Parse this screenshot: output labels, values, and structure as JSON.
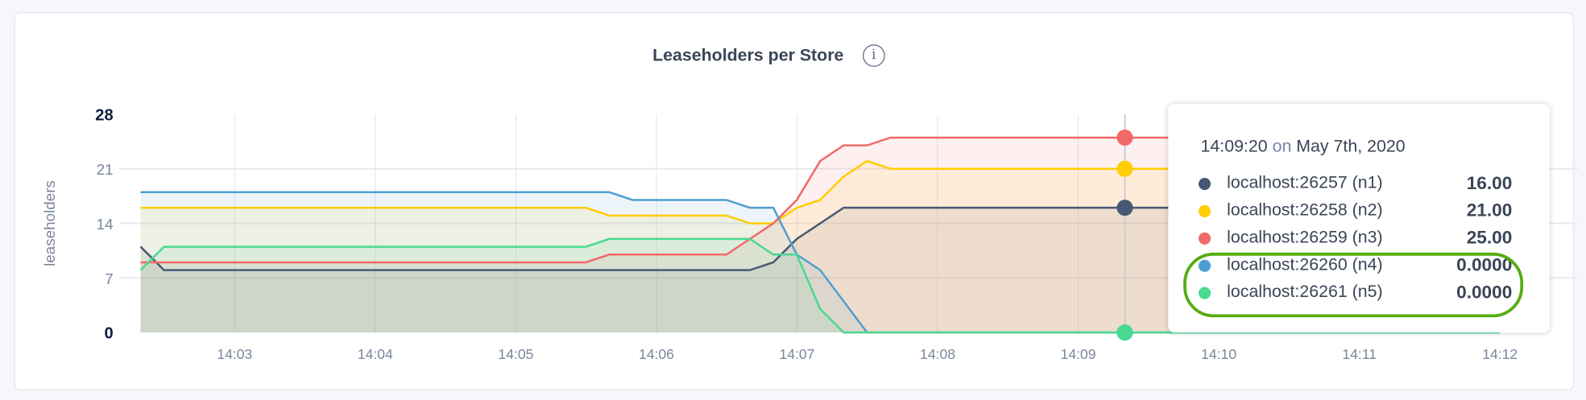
{
  "title": "Leaseholders per Store",
  "info_icon": "info-icon",
  "chart_data": {
    "type": "area",
    "title": "Leaseholders per Store",
    "ylabel": "leaseholders",
    "xlabel": "",
    "ylim": [
      0,
      28
    ],
    "yticks": [
      "0",
      "7",
      "14",
      "21",
      "28"
    ],
    "xticks": [
      "14:03",
      "14:04",
      "14:05",
      "14:06",
      "14:07",
      "14:08",
      "14:09",
      "14:10",
      "14:11",
      "14:12"
    ],
    "x_start": "14:02:20",
    "x_interval_seconds": 10,
    "grid": true,
    "series": [
      {
        "name": "localhost:26257 (n1)",
        "color": "#475872",
        "values": [
          11,
          8,
          8,
          8,
          8,
          8,
          8,
          8,
          8,
          8,
          8,
          8,
          8,
          8,
          8,
          8,
          8,
          8,
          8,
          8,
          8,
          8,
          8,
          8,
          8,
          8,
          8,
          9,
          12,
          14,
          16,
          16,
          16,
          16,
          16,
          16,
          16,
          16,
          16,
          16,
          16,
          16,
          16,
          16,
          16,
          16,
          16,
          16,
          16,
          16,
          16,
          16,
          16,
          16,
          16,
          16,
          16,
          16,
          16
        ]
      },
      {
        "name": "localhost:26258 (n2)",
        "color": "#ffcd02",
        "values": [
          16,
          16,
          16,
          16,
          16,
          16,
          16,
          16,
          16,
          16,
          16,
          16,
          16,
          16,
          16,
          16,
          16,
          16,
          16,
          16,
          15,
          15,
          15,
          15,
          15,
          15,
          14,
          14,
          16,
          17,
          20,
          22,
          21,
          21,
          21,
          21,
          21,
          21,
          21,
          21,
          21,
          21,
          21,
          21,
          21,
          21,
          21,
          21,
          21,
          21,
          21,
          21,
          21,
          21,
          21,
          21,
          21,
          21,
          21
        ]
      },
      {
        "name": "localhost:26259 (n3)",
        "color": "#f16969",
        "values": [
          9,
          9,
          9,
          9,
          9,
          9,
          9,
          9,
          9,
          9,
          9,
          9,
          9,
          9,
          9,
          9,
          9,
          9,
          9,
          9,
          10,
          10,
          10,
          10,
          10,
          10,
          12,
          14,
          17,
          22,
          24,
          24,
          25,
          25,
          25,
          25,
          25,
          25,
          25,
          25,
          25,
          25,
          25,
          25,
          25,
          25,
          25,
          25,
          25,
          25,
          25,
          25,
          25,
          25,
          25,
          25,
          25,
          25,
          25
        ]
      },
      {
        "name": "localhost:26260 (n4)",
        "color": "#4e9fd1",
        "values": [
          18,
          18,
          18,
          18,
          18,
          18,
          18,
          18,
          18,
          18,
          18,
          18,
          18,
          18,
          18,
          18,
          18,
          18,
          18,
          18,
          18,
          17,
          17,
          17,
          17,
          17,
          16,
          16,
          10,
          8,
          4,
          0,
          0,
          0,
          0,
          0,
          0,
          0,
          0,
          0,
          0,
          0,
          0,
          0,
          0,
          0,
          0,
          0,
          0,
          0,
          0,
          0,
          0,
          0,
          0,
          0,
          0,
          0,
          0
        ]
      },
      {
        "name": "localhost:26261 (n5)",
        "color": "#49d990",
        "values": [
          8,
          11,
          11,
          11,
          11,
          11,
          11,
          11,
          11,
          11,
          11,
          11,
          11,
          11,
          11,
          11,
          11,
          11,
          11,
          11,
          12,
          12,
          12,
          12,
          12,
          12,
          12,
          10,
          10,
          3,
          0,
          0,
          0,
          0,
          0,
          0,
          0,
          0,
          0,
          0,
          0,
          0,
          0,
          0,
          0,
          0,
          0,
          0,
          0,
          0,
          0,
          0,
          0,
          0,
          0,
          0,
          0,
          0,
          0
        ]
      }
    ],
    "hover_index": 42
  },
  "tooltip": {
    "time": "14:09:20",
    "on": "on",
    "date": "May 7th, 2020",
    "rows": [
      {
        "label": "localhost:26257 (n1)",
        "value": "16.00",
        "color": "#475872"
      },
      {
        "label": "localhost:26258 (n2)",
        "value": "21.00",
        "color": "#ffcd02"
      },
      {
        "label": "localhost:26259 (n3)",
        "value": "25.00",
        "color": "#f16969"
      },
      {
        "label": "localhost:26260 (n4)",
        "value": "0.0000",
        "color": "#4e9fd1"
      },
      {
        "label": "localhost:26261 (n5)",
        "value": "0.0000",
        "color": "#49d990"
      }
    ],
    "highlight_color": "#55ac0f"
  }
}
